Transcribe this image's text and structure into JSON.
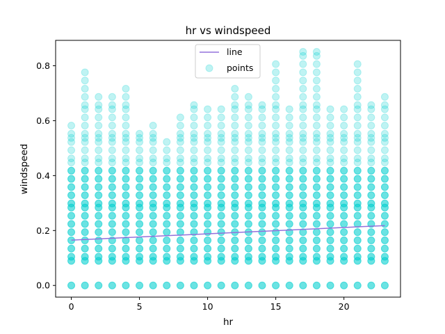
{
  "chart_data": {
    "type": "scatter",
    "title": "hr vs windspeed",
    "xlabel": "hr",
    "ylabel": "windspeed",
    "xlim": [
      -1.15,
      24.15
    ],
    "ylim": [
      -0.0425,
      0.8925
    ],
    "x_ticks": [
      0,
      5,
      10,
      15,
      20
    ],
    "y_ticks": [
      0.0,
      0.2,
      0.4,
      0.6,
      0.8
    ],
    "x_tick_labels": [
      "0",
      "5",
      "10",
      "15",
      "20"
    ],
    "y_tick_labels": [
      "0.0",
      "0.2",
      "0.4",
      "0.6",
      "0.8"
    ],
    "grid": false,
    "legend": {
      "placement": "top-center",
      "entries": [
        {
          "label": "line",
          "kind": "line"
        },
        {
          "label": "points",
          "kind": "marker"
        }
      ]
    },
    "series": [
      {
        "name": "line",
        "type": "line",
        "color": "#9370db",
        "x": [
          0,
          23
        ],
        "y": [
          0.165,
          0.218
        ]
      },
      {
        "name": "points",
        "type": "scatter",
        "color": "#00ced1",
        "alpha": 0.25,
        "hours": [
          0,
          1,
          2,
          3,
          4,
          5,
          6,
          7,
          8,
          9,
          10,
          11,
          12,
          13,
          14,
          15,
          16,
          17,
          18,
          19,
          20,
          21,
          22,
          23
        ],
        "common_levels": [
          0.0,
          0.0896,
          0.1045,
          0.1343,
          0.1642,
          0.194,
          0.2239,
          0.2537,
          0.2836,
          0.2985,
          0.3284,
          0.3582,
          0.3881,
          0.4179
        ],
        "max_values": [
          0.5821,
          0.7761,
          0.6866,
          0.6866,
          0.7164,
          0.5522,
          0.5821,
          0.5224,
          0.6119,
          0.6567,
          0.6418,
          0.6418,
          0.7164,
          0.6866,
          0.6567,
          0.806,
          0.6418,
          0.8507,
          0.8507,
          0.6418,
          0.6418,
          0.806,
          0.6567,
          0.6866
        ],
        "upper_levels": [
          0.4478,
          0.4627,
          0.4925,
          0.5224,
          0.5373,
          0.5522,
          0.5821,
          0.6119,
          0.6418,
          0.6567,
          0.6866,
          0.7164,
          0.7463,
          0.7761,
          0.806,
          0.8358,
          0.8507
        ]
      }
    ]
  }
}
